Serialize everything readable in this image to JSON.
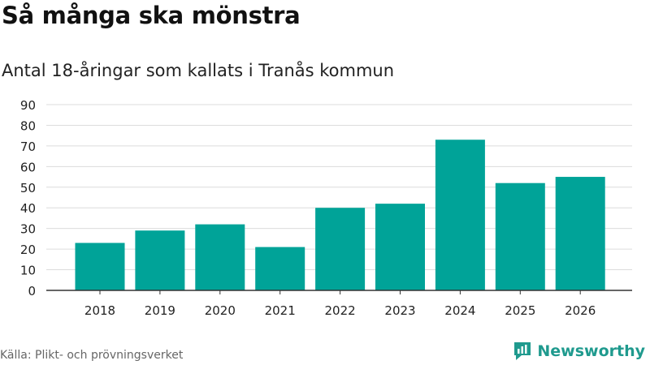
{
  "title": "Så många ska mönstra",
  "subtitle": "Antal 18-åringar som kallats i Tranås kommun",
  "source": "Källa: Plikt- och prövningsverket",
  "brand": {
    "name": "Newsworthy",
    "icon": "newsworthy-logo-icon"
  },
  "colors": {
    "bar": "#00a398",
    "grid": "#dcdcdc",
    "axis": "#333333",
    "brand": "#1f9a8e"
  },
  "chart_data": {
    "type": "bar",
    "title": "Så många ska mönstra",
    "subtitle": "Antal 18-åringar som kallats i Tranås kommun",
    "xlabel": "",
    "ylabel": "",
    "categories": [
      "2018",
      "2019",
      "2020",
      "2021",
      "2022",
      "2023",
      "2024",
      "2025",
      "2026"
    ],
    "values": [
      23,
      29,
      32,
      21,
      40,
      42,
      73,
      52,
      55
    ],
    "ylim": [
      0,
      90
    ],
    "yticks": [
      "0",
      "10",
      "20",
      "30",
      "40",
      "50",
      "60",
      "70",
      "80",
      "90"
    ],
    "grid": true,
    "legend": "none"
  }
}
